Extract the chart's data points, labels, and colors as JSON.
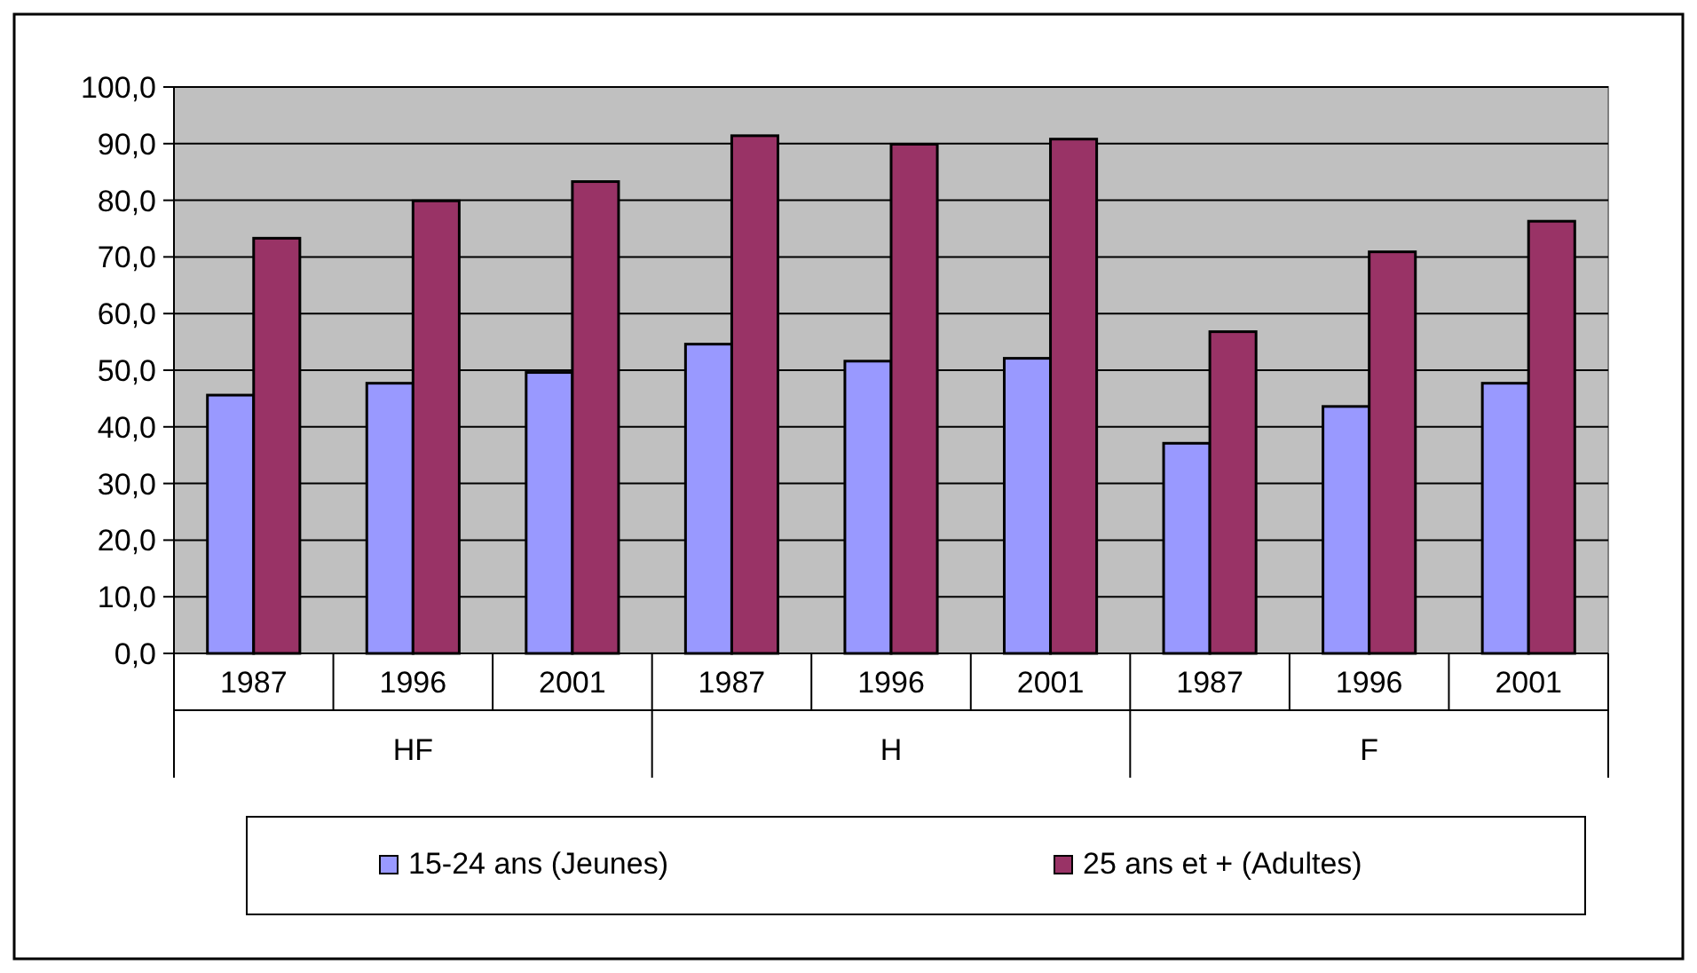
{
  "chart_data": {
    "type": "bar",
    "categories": [
      "1987",
      "1996",
      "2001",
      "1987",
      "1996",
      "2001",
      "1987",
      "1996",
      "2001"
    ],
    "annotations": [
      "HF",
      "H",
      "F"
    ],
    "series": [
      {
        "name": "15-24 ans (Jeunes)",
        "color": "#9999ff",
        "values": [
          45.6,
          47.7,
          49.6,
          54.6,
          51.6,
          52.1,
          37.1,
          43.6,
          47.7
        ]
      },
      {
        "name": "25 ans et + (Adultes)",
        "color": "#993366",
        "values": [
          73.3,
          79.9,
          83.3,
          91.4,
          89.9,
          90.8,
          56.8,
          70.9,
          76.3
        ]
      }
    ],
    "ylim": [
      0,
      100
    ],
    "yticks": [
      {
        "value": 0,
        "label": "0,0"
      },
      {
        "value": 10,
        "label": "10,0"
      },
      {
        "value": 20,
        "label": "20,0"
      },
      {
        "value": 30,
        "label": "30,0"
      },
      {
        "value": 40,
        "label": "40,0"
      },
      {
        "value": 50,
        "label": "50,0"
      },
      {
        "value": 60,
        "label": "60,0"
      },
      {
        "value": 70,
        "label": "70,0"
      },
      {
        "value": 80,
        "label": "80,0"
      },
      {
        "value": 90,
        "label": "90,0"
      },
      {
        "value": 100,
        "label": "100,0"
      }
    ],
    "grid": "y",
    "legend": "bottom"
  }
}
